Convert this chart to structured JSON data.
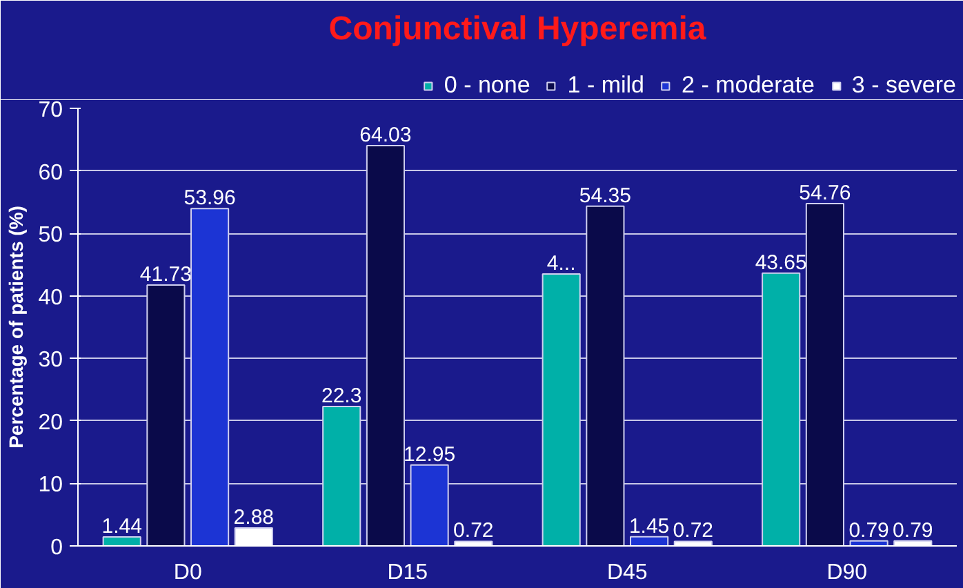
{
  "chart_data": {
    "type": "bar",
    "title": "Conjunctival Hyperemia",
    "ylabel": "Percentage of patients (%)",
    "categories": [
      "D0",
      "D15",
      "D45",
      "D90"
    ],
    "series": [
      {
        "name": "0 - none",
        "color": "#00b0a8",
        "values": [
          1.44,
          22.3,
          43.5,
          43.65
        ],
        "value_labels": [
          "1.44",
          "22.3",
          "4...",
          "43.65"
        ]
      },
      {
        "name": "1 - mild",
        "color": "#0a0a4a",
        "values": [
          41.73,
          64.03,
          54.35,
          54.76
        ],
        "value_labels": [
          "41.73",
          "64.03",
          "54.35",
          "54.76"
        ]
      },
      {
        "name": "2 - moderate",
        "color": "#1c34d4",
        "values": [
          53.96,
          12.95,
          1.45,
          0.79
        ],
        "value_labels": [
          "53.96",
          "12.95",
          "1.45",
          "0.79"
        ]
      },
      {
        "name": "3 - severe",
        "color": "#ffffff",
        "values": [
          2.88,
          0.72,
          0.72,
          0.79
        ],
        "value_labels": [
          "2.88",
          "0.72",
          "0.72",
          "0.79"
        ]
      }
    ],
    "ylim": [
      0,
      70
    ],
    "yticks": [
      0,
      10,
      20,
      30,
      40,
      50,
      60,
      70
    ],
    "grid": "y",
    "legend": "top right"
  }
}
